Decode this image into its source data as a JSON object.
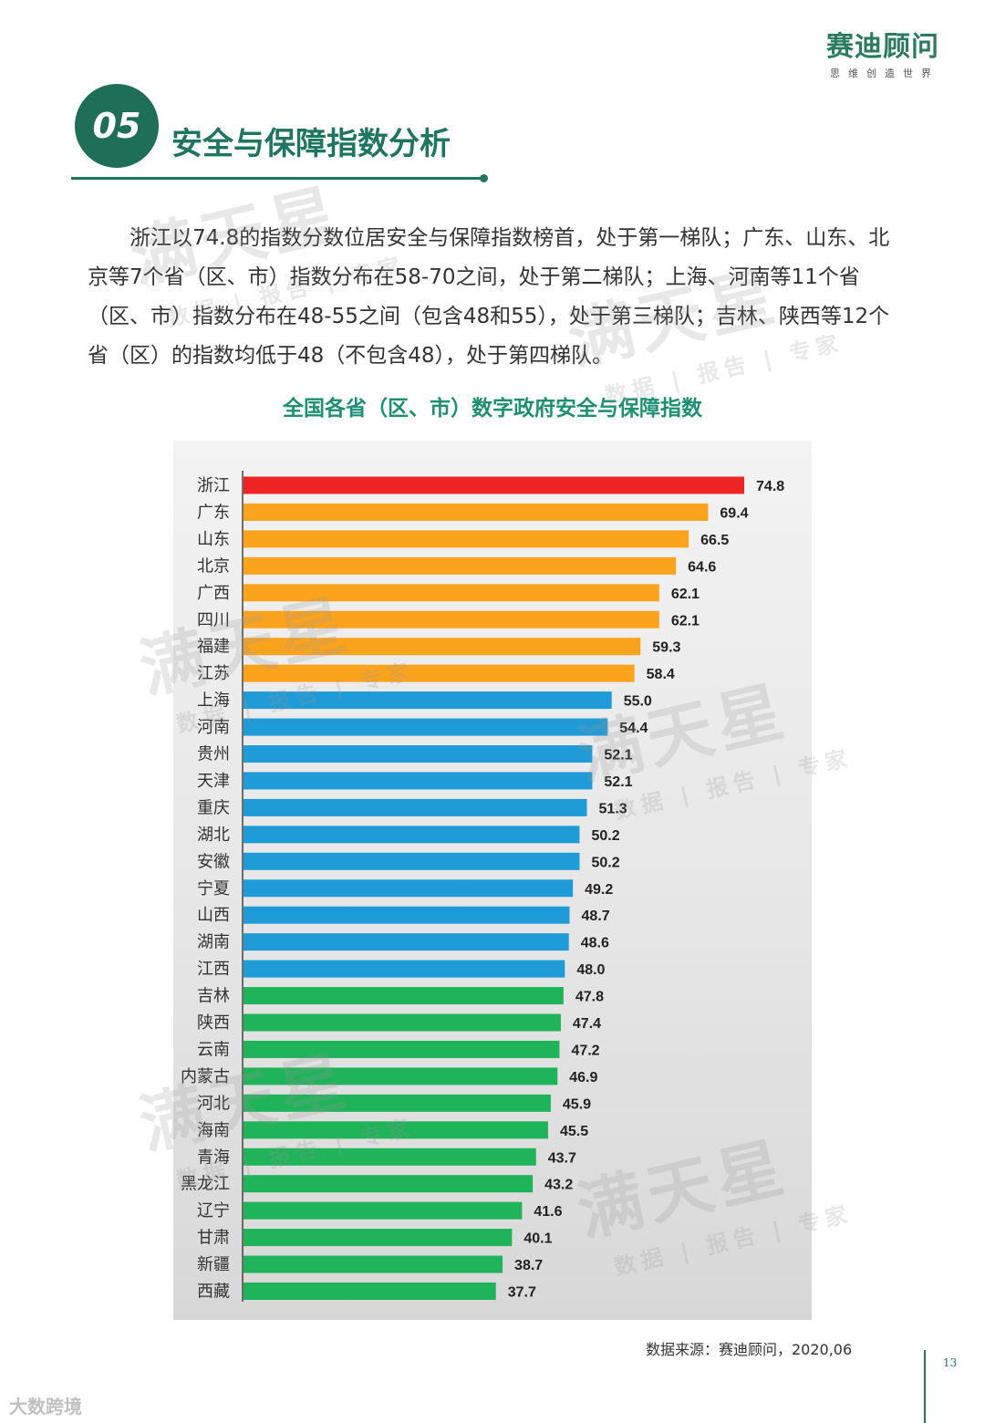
{
  "brand": {
    "name": "赛迪顾问",
    "tagline": "思维创造世界"
  },
  "section": {
    "number": "05",
    "title": "安全与保障指数分析"
  },
  "intro_text": "浙江以74.8的指数分数位居安全与保障指数榜首，处于第一梯队；广东、山东、北京等7个省（区、市）指数分布在58-70之间，处于第二梯队；上海、河南等11个省（区、市）指数分布在48-55之间（包含48和55），处于第三梯队；吉林、陕西等12个省（区）的指数均低于48（不包含48），处于第四梯队。",
  "chart_data": {
    "type": "bar",
    "orientation": "horizontal",
    "title": "全国各省（区、市）数字政府安全与保障指数",
    "categories": [
      "浙江",
      "广东",
      "山东",
      "北京",
      "广西",
      "四川",
      "福建",
      "江苏",
      "上海",
      "河南",
      "贵州",
      "天津",
      "重庆",
      "湖北",
      "安徽",
      "宁夏",
      "山西",
      "湖南",
      "江西",
      "吉林",
      "陕西",
      "云南",
      "内蒙古",
      "河北",
      "海南",
      "青海",
      "黑龙江",
      "辽宁",
      "甘肃",
      "新疆",
      "西藏"
    ],
    "values": [
      74.8,
      69.4,
      66.5,
      64.6,
      62.1,
      62.1,
      59.3,
      58.4,
      55.0,
      54.4,
      52.1,
      52.1,
      51.3,
      50.2,
      50.2,
      49.2,
      48.7,
      48.6,
      48.0,
      47.8,
      47.4,
      47.2,
      46.9,
      45.9,
      45.5,
      43.7,
      43.2,
      41.6,
      40.1,
      38.7,
      37.7
    ],
    "tiers": [
      1,
      2,
      2,
      2,
      2,
      2,
      2,
      2,
      3,
      3,
      3,
      3,
      3,
      3,
      3,
      3,
      3,
      3,
      3,
      4,
      4,
      4,
      4,
      4,
      4,
      4,
      4,
      4,
      4,
      4,
      4
    ],
    "tier_colors": {
      "1": "#ee2424",
      "2": "#fba31d",
      "3": "#1f9bd7",
      "4": "#1fb35a"
    },
    "xlim": [
      0,
      80
    ],
    "xlabel": "",
    "ylabel": ""
  },
  "watermark": {
    "main": "满天星",
    "sub": "数据 | 报告 | 专家"
  },
  "source": "数据来源：赛迪顾问，2020,06",
  "page_number": "13",
  "corner_mark": "大数跨境"
}
